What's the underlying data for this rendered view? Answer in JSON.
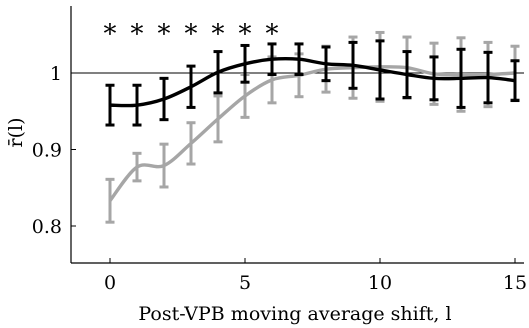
{
  "chart_data": {
    "type": "line",
    "title": "",
    "xlabel": "Post-VPB moving average shift, l",
    "ylabel": "r̄(l)",
    "xlim": [
      -0.8,
      15.2
    ],
    "ylim": [
      0.753,
      1.085
    ],
    "x_ticks": [
      0,
      5,
      10,
      15
    ],
    "x_tick_labels": [
      "0",
      "5",
      "10",
      "15"
    ],
    "y_ticks": [
      0.8,
      0.9,
      1.0
    ],
    "y_tick_labels": [
      "0.8",
      "0.9",
      "1"
    ],
    "reference_line": 1.0,
    "grid": false,
    "legend": "none",
    "significance_marker": "∗",
    "significance_x": [
      0,
      1,
      2,
      3,
      4,
      5,
      6
    ],
    "significance_y": 1.06,
    "x": [
      0,
      1,
      2,
      3,
      4,
      5,
      6,
      7,
      8,
      9,
      10,
      11,
      12,
      13,
      14,
      15
    ],
    "series": [
      {
        "color": "#000000",
        "values": [
          0.958,
          0.958,
          0.966,
          0.982,
          1.001,
          1.012,
          1.018,
          1.018,
          1.012,
          1.01,
          1.004,
          0.998,
          0.993,
          0.993,
          0.994,
          0.99
        ],
        "err": [
          0.026,
          0.026,
          0.027,
          0.027,
          0.027,
          0.024,
          0.02,
          0.02,
          0.022,
          0.03,
          0.038,
          0.03,
          0.028,
          0.038,
          0.033,
          0.026
        ]
      },
      {
        "color": "#a6a6a6",
        "values": [
          0.833,
          0.877,
          0.879,
          0.908,
          0.94,
          0.97,
          0.991,
          0.997,
          1.005,
          1.007,
          1.008,
          1.007,
          0.999,
          0.998,
          0.998,
          1.0
        ],
        "err": [
          0.028,
          0.018,
          0.028,
          0.027,
          0.03,
          0.028,
          0.03,
          0.028,
          0.03,
          0.04,
          0.045,
          0.04,
          0.04,
          0.048,
          0.042,
          0.035
        ]
      }
    ]
  }
}
